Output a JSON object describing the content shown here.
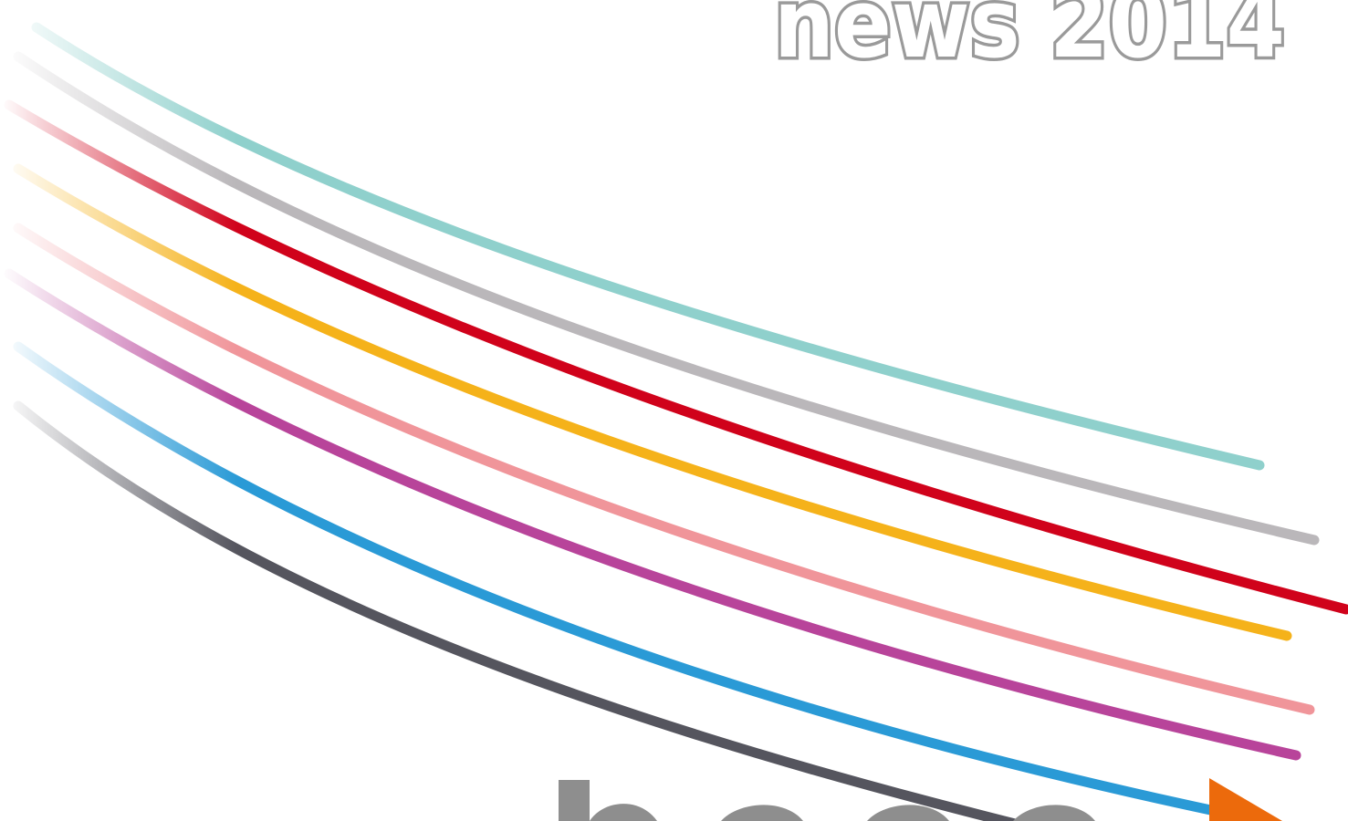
{
  "header": {
    "title": "news 2014"
  }
}
